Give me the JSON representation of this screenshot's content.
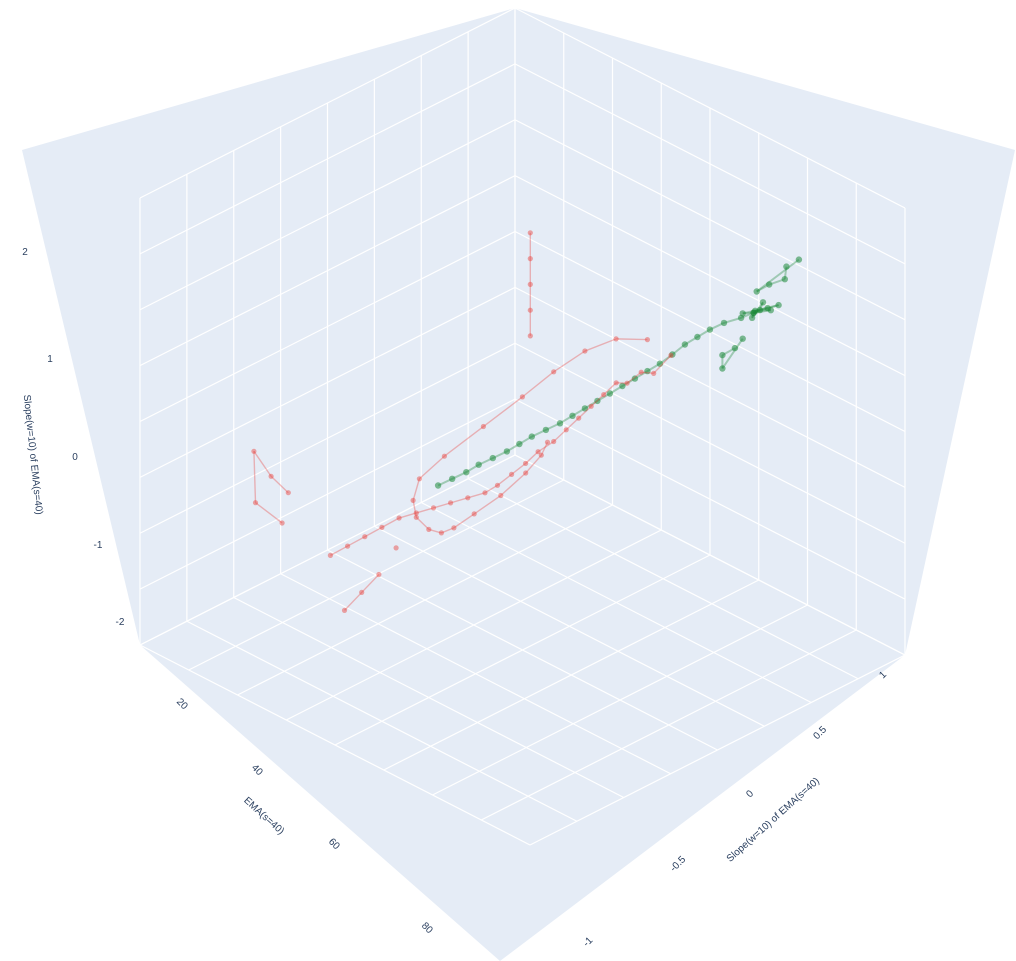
{
  "chart_data": {
    "type": "scatter",
    "subtype": "scatter3d",
    "title": "",
    "axes": {
      "x": {
        "label": "EMA(s=40)",
        "ticks": [
          "20",
          "40",
          "60",
          "80"
        ],
        "range": [
          10,
          90
        ]
      },
      "y": {
        "label": "Slope(w=10) of EMA(s=40)",
        "ticks": [
          "-1",
          "-0.5",
          "0",
          "0.5",
          "1"
        ],
        "range": [
          -1.25,
          1.25
        ]
      },
      "z": {
        "label": "Slope(w=10) of EMA(s=40)",
        "ticks": [
          "2",
          "1",
          "0",
          "-1",
          "-2"
        ],
        "range": [
          -2.6,
          2.6
        ]
      }
    },
    "grid": true,
    "legend": "none",
    "colors": {
      "background": "#e5ecf6",
      "grid": "#ffffff",
      "green": "#1e8a3a",
      "red": "#e8403a",
      "text": "#2a3f5f"
    },
    "series": [
      {
        "color": "green",
        "points": [
          [
            16,
            0.55,
            0.95
          ],
          [
            17,
            0.5,
            0.9
          ],
          [
            17,
            0.6,
            1.0
          ],
          [
            18,
            0.52,
            0.92
          ],
          [
            18,
            0.45,
            0.85
          ],
          [
            16,
            0.62,
            1.05
          ],
          [
            19,
            0.55,
            0.98
          ],
          [
            17,
            0.48,
            0.8
          ],
          [
            18,
            0.58,
            1.1
          ],
          [
            16,
            0.5,
            0.88
          ],
          [
            20,
            0.5,
            0.9
          ],
          [
            22,
            0.45,
            0.85
          ],
          [
            24,
            0.42,
            0.8
          ],
          [
            26,
            0.4,
            0.75
          ],
          [
            28,
            0.38,
            0.7
          ],
          [
            30,
            0.36,
            0.62
          ],
          [
            32,
            0.34,
            0.55
          ],
          [
            34,
            0.32,
            0.5
          ],
          [
            36,
            0.3,
            0.45
          ],
          [
            38,
            0.28,
            0.4
          ],
          [
            40,
            0.26,
            0.35
          ],
          [
            42,
            0.24,
            0.3
          ],
          [
            44,
            0.22,
            0.25
          ],
          [
            46,
            0.2,
            0.2
          ],
          [
            48,
            0.18,
            0.15
          ],
          [
            50,
            0.15,
            0.1
          ],
          [
            52,
            0.12,
            0.05
          ],
          [
            54,
            0.1,
            0.0
          ],
          [
            56,
            0.08,
            -0.05
          ],
          [
            58,
            0.05,
            -0.1
          ],
          [
            60,
            0.02,
            -0.15
          ],
          [
            62,
            0.0,
            -0.2
          ],
          [
            64,
            -0.03,
            -0.25
          ],
          [
            66,
            -0.06,
            -0.3
          ],
          [
            17,
            0.7,
            1.6
          ],
          [
            18,
            0.72,
            1.5
          ],
          [
            19,
            0.65,
            1.4
          ],
          [
            20,
            0.6,
            1.3
          ],
          [
            16,
            0.75,
            1.7
          ],
          [
            18,
            0.4,
            0.4
          ],
          [
            19,
            0.35,
            0.3
          ],
          [
            20,
            0.38,
            0.2
          ],
          [
            17,
            0.42,
            0.5
          ]
        ]
      },
      {
        "color": "red",
        "points": [
          [
            30,
            0.35,
            0.6
          ],
          [
            32,
            0.3,
            0.4
          ],
          [
            34,
            0.28,
            0.45
          ],
          [
            36,
            0.25,
            0.35
          ],
          [
            38,
            0.24,
            0.4
          ],
          [
            40,
            0.22,
            0.3
          ],
          [
            42,
            0.2,
            0.2
          ],
          [
            44,
            0.18,
            0.1
          ],
          [
            46,
            0.16,
            0.0
          ],
          [
            48,
            0.14,
            -0.1
          ],
          [
            50,
            0.1,
            -0.2
          ],
          [
            52,
            0.08,
            -0.3
          ],
          [
            54,
            0.05,
            -0.4
          ],
          [
            56,
            0.02,
            -0.5
          ],
          [
            58,
            0.0,
            -0.55
          ],
          [
            60,
            -0.05,
            -0.6
          ],
          [
            62,
            -0.1,
            -0.65
          ],
          [
            64,
            -0.15,
            -0.7
          ],
          [
            66,
            -0.2,
            -0.75
          ],
          [
            68,
            -0.25,
            -0.8
          ],
          [
            70,
            -0.3,
            -0.9
          ],
          [
            72,
            -0.35,
            -1.0
          ],
          [
            74,
            -0.4,
            -1.1
          ],
          [
            76,
            -0.45,
            -1.2
          ],
          [
            40,
            0.5,
            1.2
          ],
          [
            45,
            0.45,
            1.3
          ],
          [
            50,
            0.4,
            1.25
          ],
          [
            55,
            0.35,
            1.1
          ],
          [
            60,
            0.3,
            0.9
          ],
          [
            65,
            0.2,
            0.6
          ],
          [
            70,
            0.1,
            0.3
          ],
          [
            72,
            0.0,
            0.0
          ],
          [
            70,
            -0.1,
            -0.4
          ],
          [
            66,
            -0.2,
            -0.8
          ],
          [
            60,
            -0.3,
            -1.2
          ],
          [
            54,
            -0.4,
            -1.5
          ],
          [
            48,
            -0.5,
            -1.7
          ],
          [
            42,
            -0.55,
            -1.75
          ],
          [
            38,
            -0.5,
            -1.6
          ],
          [
            36,
            -0.4,
            -1.3
          ],
          [
            36,
            -0.3,
            -1.0
          ],
          [
            38,
            -0.2,
            -0.7
          ],
          [
            50,
            0.05,
            2.3
          ],
          [
            50,
            0.05,
            2.0
          ],
          [
            50,
            0.05,
            1.7
          ],
          [
            50,
            0.05,
            1.4
          ],
          [
            50,
            0.05,
            1.1
          ],
          [
            64,
            -0.5,
            -1.8
          ],
          [
            66,
            -0.55,
            -2.0
          ],
          [
            68,
            -0.6,
            -2.2
          ],
          [
            62,
            -0.45,
            -1.5
          ],
          [
            80,
            -0.6,
            -0.5
          ],
          [
            82,
            -0.65,
            -0.3
          ],
          [
            84,
            -0.7,
            0.0
          ],
          [
            82,
            -0.75,
            -0.7
          ],
          [
            78,
            -0.7,
            -1.0
          ]
        ]
      }
    ]
  }
}
